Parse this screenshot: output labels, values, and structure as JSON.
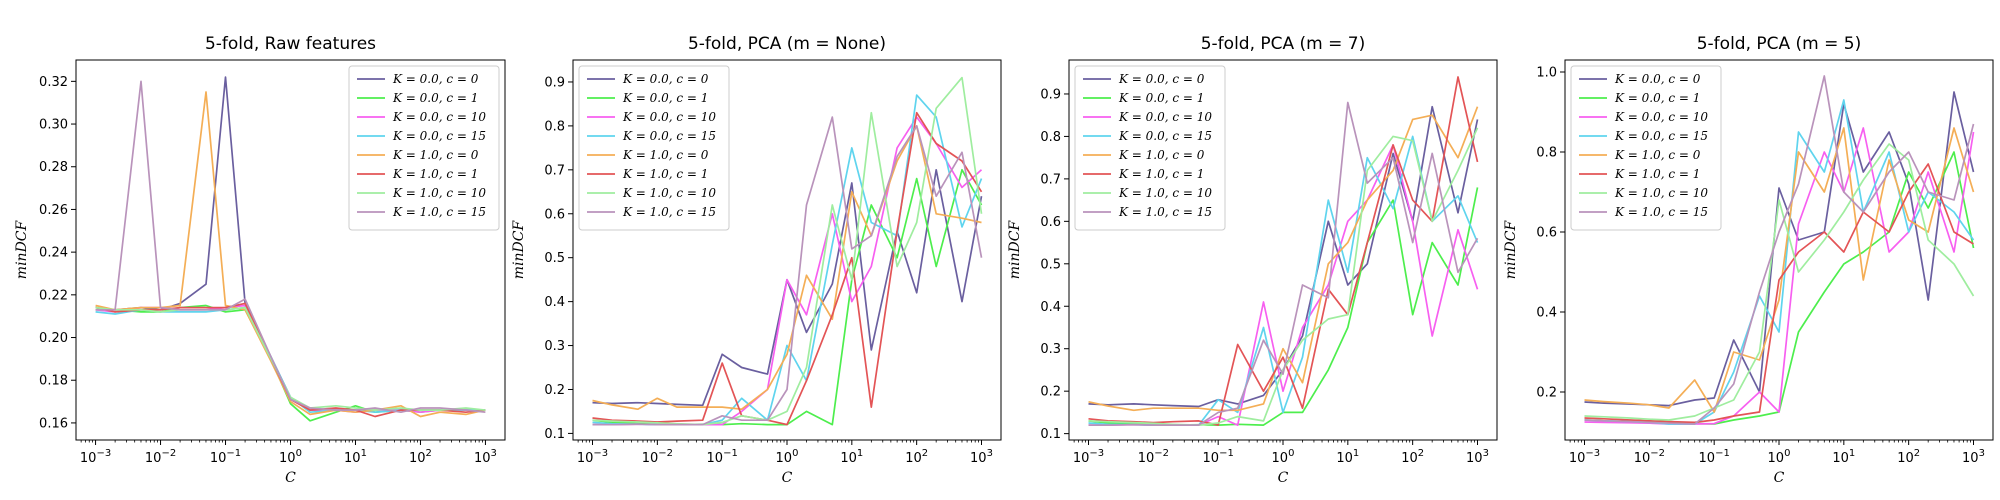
{
  "chart_data": [
    {
      "type": "line",
      "title": "5-fold, Raw features",
      "xlabel": "C",
      "ylabel": "minDCF",
      "xscale": "log",
      "x": [
        0.001,
        0.002,
        0.005,
        0.01,
        0.02,
        0.05,
        0.1,
        0.2,
        0.5,
        1,
        2,
        5,
        10,
        20,
        50,
        100,
        200,
        500,
        1000
      ],
      "xlim": [
        0.0005,
        2000
      ],
      "ylim": [
        0.152,
        0.33
      ],
      "yticks": [
        0.16,
        0.18,
        0.2,
        0.22,
        0.24,
        0.26,
        0.28,
        0.3,
        0.32
      ],
      "ytick_labels": [
        "0.16",
        "0.18",
        "0.20",
        "0.22",
        "0.24",
        "0.26",
        "0.28",
        "0.30",
        "0.32"
      ],
      "xtick_labels": [
        "10^-3",
        "10^-2",
        "10^-1",
        "10^0",
        "10^1",
        "10^2",
        "10^3"
      ],
      "legend_position": "top-right",
      "series": [
        {
          "name": "K = 0.0, c = 0",
          "color": "#6a5f9f",
          "values": [
            0.214,
            0.213,
            0.214,
            0.213,
            0.216,
            0.225,
            0.322,
            0.216,
            0.191,
            0.172,
            0.166,
            0.166,
            0.166,
            0.166,
            0.166,
            0.166,
            0.166,
            0.166,
            0.166
          ]
        },
        {
          "name": "K = 0.0, c = 1",
          "color": "#4dee4d",
          "values": [
            0.213,
            0.213,
            0.212,
            0.212,
            0.214,
            0.215,
            0.212,
            0.213,
            0.19,
            0.169,
            0.161,
            0.165,
            0.168,
            0.165,
            0.166,
            0.165,
            0.166,
            0.166,
            0.166
          ]
        },
        {
          "name": "K = 0.0, c = 10",
          "color": "#f75ff0",
          "values": [
            0.213,
            0.212,
            0.214,
            0.214,
            0.213,
            0.213,
            0.214,
            0.215,
            0.19,
            0.171,
            0.166,
            0.166,
            0.165,
            0.166,
            0.166,
            0.165,
            0.166,
            0.166,
            0.166
          ]
        },
        {
          "name": "K = 0.0, c = 15",
          "color": "#5fd4ee",
          "values": [
            0.212,
            0.211,
            0.213,
            0.212,
            0.212,
            0.212,
            0.213,
            0.214,
            0.191,
            0.172,
            0.165,
            0.166,
            0.166,
            0.165,
            0.166,
            0.166,
            0.166,
            0.166,
            0.166
          ]
        },
        {
          "name": "K = 1.0, c = 0",
          "color": "#f4ae56",
          "values": [
            0.215,
            0.213,
            0.214,
            0.214,
            0.215,
            0.315,
            0.215,
            0.213,
            0.189,
            0.17,
            0.164,
            0.166,
            0.165,
            0.166,
            0.168,
            0.163,
            0.165,
            0.164,
            0.166
          ]
        },
        {
          "name": "K = 1.0, c = 1",
          "color": "#e35456",
          "values": [
            0.214,
            0.212,
            0.213,
            0.213,
            0.214,
            0.214,
            0.214,
            0.216,
            0.19,
            0.171,
            0.166,
            0.167,
            0.166,
            0.163,
            0.166,
            0.166,
            0.166,
            0.165,
            0.166
          ]
        },
        {
          "name": "K = 1.0, c = 10",
          "color": "#9fed9f",
          "values": [
            0.214,
            0.213,
            0.213,
            0.212,
            0.213,
            0.213,
            0.213,
            0.214,
            0.19,
            0.172,
            0.167,
            0.168,
            0.167,
            0.166,
            0.167,
            0.166,
            0.166,
            0.167,
            0.166
          ]
        },
        {
          "name": "K = 1.0, c = 15",
          "color": "#b993bb",
          "values": [
            0.213,
            0.213,
            0.32,
            0.214,
            0.213,
            0.213,
            0.213,
            0.218,
            0.191,
            0.171,
            0.167,
            0.166,
            0.166,
            0.167,
            0.165,
            0.167,
            0.167,
            0.166,
            0.165
          ]
        }
      ]
    },
    {
      "type": "line",
      "title": "5-fold, PCA (m = None)",
      "xlabel": "C",
      "ylabel": "minDCF",
      "xscale": "log",
      "x": [
        0.001,
        0.002,
        0.005,
        0.01,
        0.02,
        0.05,
        0.1,
        0.2,
        0.5,
        1,
        2,
        5,
        10,
        20,
        50,
        100,
        200,
        500,
        1000
      ],
      "xlim": [
        0.0005,
        2000
      ],
      "ylim": [
        0.085,
        0.95
      ],
      "yticks": [
        0.1,
        0.2,
        0.3,
        0.4,
        0.5,
        0.6,
        0.7,
        0.8,
        0.9
      ],
      "ytick_labels": [
        "0.1",
        "0.2",
        "0.3",
        "0.4",
        "0.5",
        "0.6",
        "0.7",
        "0.8",
        "0.9"
      ],
      "xtick_labels": [
        "10^-3",
        "10^-2",
        "10^-1",
        "10^0",
        "10^1",
        "10^2",
        "10^3"
      ],
      "legend_position": "top-left",
      "series": [
        {
          "name": "K = 0.0, c = 0",
          "color": "#6a5f9f",
          "values": [
            0.17,
            0.168,
            0.17,
            0.168,
            0.166,
            0.164,
            0.28,
            0.25,
            0.235,
            0.45,
            0.33,
            0.44,
            0.67,
            0.29,
            0.56,
            0.42,
            0.7,
            0.4,
            0.64
          ]
        },
        {
          "name": "K = 0.0, c = 1",
          "color": "#4dee4d",
          "values": [
            0.13,
            0.125,
            0.123,
            0.122,
            0.12,
            0.121,
            0.12,
            0.122,
            0.12,
            0.12,
            0.15,
            0.12,
            0.45,
            0.62,
            0.5,
            0.68,
            0.48,
            0.7,
            0.62
          ]
        },
        {
          "name": "K = 0.0, c = 10",
          "color": "#f75ff0",
          "values": [
            0.12,
            0.12,
            0.121,
            0.12,
            0.12,
            0.12,
            0.12,
            0.15,
            0.2,
            0.45,
            0.37,
            0.6,
            0.4,
            0.48,
            0.75,
            0.82,
            0.76,
            0.66,
            0.7
          ]
        },
        {
          "name": "K = 0.0, c = 15",
          "color": "#5fd4ee",
          "values": [
            0.125,
            0.122,
            0.121,
            0.12,
            0.121,
            0.12,
            0.13,
            0.18,
            0.13,
            0.3,
            0.22,
            0.53,
            0.75,
            0.58,
            0.55,
            0.87,
            0.82,
            0.57,
            0.68
          ]
        },
        {
          "name": "K = 1.0, c = 0",
          "color": "#f4ae56",
          "values": [
            0.175,
            0.165,
            0.155,
            0.18,
            0.16,
            0.16,
            0.16,
            0.155,
            0.2,
            0.28,
            0.46,
            0.36,
            0.65,
            0.55,
            0.72,
            0.8,
            0.6,
            0.59,
            0.58
          ]
        },
        {
          "name": "K = 1.0, c = 1",
          "color": "#e35456",
          "values": [
            0.135,
            0.13,
            0.128,
            0.126,
            0.128,
            0.13,
            0.26,
            0.14,
            0.13,
            0.12,
            0.22,
            0.37,
            0.5,
            0.16,
            0.56,
            0.83,
            0.76,
            0.72,
            0.65
          ]
        },
        {
          "name": "K = 1.0, c = 10",
          "color": "#9fed9f",
          "values": [
            0.13,
            0.128,
            0.126,
            0.124,
            0.122,
            0.12,
            0.125,
            0.14,
            0.13,
            0.15,
            0.25,
            0.62,
            0.45,
            0.83,
            0.48,
            0.58,
            0.84,
            0.91,
            0.6
          ]
        },
        {
          "name": "K = 1.0, c = 15",
          "color": "#b993bb",
          "values": [
            0.12,
            0.12,
            0.121,
            0.12,
            0.12,
            0.12,
            0.14,
            0.13,
            0.13,
            0.2,
            0.62,
            0.82,
            0.52,
            0.55,
            0.73,
            0.8,
            0.64,
            0.74,
            0.5
          ]
        }
      ]
    },
    {
      "type": "line",
      "title": "5-fold, PCA (m = 7)",
      "xlabel": "C",
      "ylabel": "minDCF",
      "xscale": "log",
      "x": [
        0.001,
        0.002,
        0.005,
        0.01,
        0.02,
        0.05,
        0.1,
        0.2,
        0.5,
        1,
        2,
        5,
        10,
        20,
        50,
        100,
        200,
        500,
        1000
      ],
      "xlim": [
        0.0005,
        2000
      ],
      "ylim": [
        0.085,
        0.98
      ],
      "yticks": [
        0.1,
        0.2,
        0.3,
        0.4,
        0.5,
        0.6,
        0.7,
        0.8,
        0.9
      ],
      "ytick_labels": [
        "0.1",
        "0.2",
        "0.3",
        "0.4",
        "0.5",
        "0.6",
        "0.7",
        "0.8",
        "0.9"
      ],
      "xtick_labels": [
        "10^-3",
        "10^-2",
        "10^-1",
        "10^0",
        "10^1",
        "10^2",
        "10^3"
      ],
      "legend_position": "top-left",
      "series": [
        {
          "name": "K = 0.0, c = 0",
          "color": "#6a5f9f",
          "values": [
            0.17,
            0.168,
            0.17,
            0.168,
            0.166,
            0.164,
            0.18,
            0.17,
            0.19,
            0.25,
            0.33,
            0.6,
            0.45,
            0.5,
            0.76,
            0.6,
            0.87,
            0.62,
            0.84
          ]
        },
        {
          "name": "K = 0.0, c = 1",
          "color": "#4dee4d",
          "values": [
            0.13,
            0.125,
            0.123,
            0.122,
            0.12,
            0.121,
            0.12,
            0.122,
            0.12,
            0.15,
            0.15,
            0.25,
            0.35,
            0.55,
            0.65,
            0.38,
            0.55,
            0.45,
            0.68
          ]
        },
        {
          "name": "K = 0.0, c = 10",
          "color": "#f75ff0",
          "values": [
            0.12,
            0.12,
            0.121,
            0.12,
            0.12,
            0.12,
            0.14,
            0.12,
            0.41,
            0.2,
            0.35,
            0.45,
            0.6,
            0.65,
            0.78,
            0.6,
            0.33,
            0.58,
            0.44
          ]
        },
        {
          "name": "K = 0.0, c = 15",
          "color": "#5fd4ee",
          "values": [
            0.125,
            0.122,
            0.121,
            0.12,
            0.121,
            0.12,
            0.18,
            0.15,
            0.35,
            0.15,
            0.28,
            0.65,
            0.48,
            0.75,
            0.63,
            0.8,
            0.6,
            0.66,
            0.55
          ]
        },
        {
          "name": "K = 1.0, c = 0",
          "color": "#f4ae56",
          "values": [
            0.175,
            0.165,
            0.155,
            0.16,
            0.16,
            0.16,
            0.155,
            0.155,
            0.17,
            0.3,
            0.22,
            0.5,
            0.55,
            0.65,
            0.72,
            0.84,
            0.85,
            0.75,
            0.87
          ]
        },
        {
          "name": "K = 1.0, c = 1",
          "color": "#e35456",
          "values": [
            0.135,
            0.13,
            0.128,
            0.126,
            0.128,
            0.13,
            0.12,
            0.31,
            0.2,
            0.28,
            0.16,
            0.44,
            0.38,
            0.55,
            0.78,
            0.65,
            0.6,
            0.94,
            0.74
          ]
        },
        {
          "name": "K = 1.0, c = 10",
          "color": "#9fed9f",
          "values": [
            0.13,
            0.128,
            0.126,
            0.124,
            0.122,
            0.12,
            0.125,
            0.14,
            0.13,
            0.25,
            0.32,
            0.37,
            0.38,
            0.72,
            0.8,
            0.79,
            0.6,
            0.72,
            0.82
          ]
        },
        {
          "name": "K = 1.0, c = 15",
          "color": "#b993bb",
          "values": [
            0.12,
            0.12,
            0.121,
            0.12,
            0.12,
            0.12,
            0.15,
            0.16,
            0.32,
            0.24,
            0.45,
            0.42,
            0.88,
            0.69,
            0.75,
            0.55,
            0.76,
            0.48,
            0.56
          ]
        }
      ]
    },
    {
      "type": "line",
      "title": "5-fold, PCA (m = 5)",
      "xlabel": "C",
      "ylabel": "minDCF",
      "xscale": "log",
      "x": [
        0.001,
        0.002,
        0.005,
        0.01,
        0.02,
        0.05,
        0.1,
        0.2,
        0.5,
        1,
        2,
        5,
        10,
        20,
        50,
        100,
        200,
        500,
        1000
      ],
      "xlim": [
        0.0005,
        2000
      ],
      "ylim": [
        0.08,
        1.03
      ],
      "yticks": [
        0.2,
        0.4,
        0.6,
        0.8,
        1.0
      ],
      "ytick_labels": [
        "0.2",
        "0.4",
        "0.6",
        "0.8",
        "1.0"
      ],
      "xtick_labels": [
        "10^-3",
        "10^-2",
        "10^-1",
        "10^0",
        "10^1",
        "10^2",
        "10^3"
      ],
      "legend_position": "top-left",
      "series": [
        {
          "name": "K = 0.0, c = 0",
          "color": "#6a5f9f",
          "values": [
            0.175,
            0.172,
            0.17,
            0.168,
            0.166,
            0.18,
            0.185,
            0.33,
            0.2,
            0.71,
            0.58,
            0.6,
            0.92,
            0.75,
            0.85,
            0.72,
            0.43,
            0.95,
            0.75
          ]
        },
        {
          "name": "K = 0.0, c = 1",
          "color": "#4dee4d",
          "values": [
            0.13,
            0.128,
            0.126,
            0.124,
            0.122,
            0.121,
            0.12,
            0.13,
            0.14,
            0.15,
            0.35,
            0.45,
            0.52,
            0.55,
            0.6,
            0.75,
            0.66,
            0.8,
            0.56
          ]
        },
        {
          "name": "K = 0.0, c = 10",
          "color": "#f75ff0",
          "values": [
            0.125,
            0.124,
            0.123,
            0.122,
            0.12,
            0.12,
            0.121,
            0.14,
            0.2,
            0.15,
            0.62,
            0.8,
            0.7,
            0.86,
            0.55,
            0.6,
            0.75,
            0.55,
            0.85
          ]
        },
        {
          "name": "K = 0.0, c = 15",
          "color": "#5fd4ee",
          "values": [
            0.13,
            0.128,
            0.126,
            0.124,
            0.12,
            0.12,
            0.15,
            0.25,
            0.44,
            0.35,
            0.85,
            0.75,
            0.93,
            0.65,
            0.8,
            0.6,
            0.7,
            0.65,
            0.58
          ]
        },
        {
          "name": "K = 1.0, c = 0",
          "color": "#f4ae56",
          "values": [
            0.18,
            0.176,
            0.172,
            0.168,
            0.16,
            0.23,
            0.15,
            0.3,
            0.28,
            0.43,
            0.8,
            0.7,
            0.86,
            0.48,
            0.78,
            0.63,
            0.6,
            0.86,
            0.7
          ]
        },
        {
          "name": "K = 1.0, c = 1",
          "color": "#e35456",
          "values": [
            0.135,
            0.133,
            0.13,
            0.128,
            0.126,
            0.124,
            0.13,
            0.14,
            0.15,
            0.48,
            0.55,
            0.6,
            0.55,
            0.65,
            0.6,
            0.7,
            0.77,
            0.6,
            0.57
          ]
        },
        {
          "name": "K = 1.0, c = 10",
          "color": "#9fed9f",
          "values": [
            0.14,
            0.138,
            0.135,
            0.132,
            0.13,
            0.14,
            0.16,
            0.18,
            0.3,
            0.68,
            0.5,
            0.58,
            0.65,
            0.73,
            0.82,
            0.78,
            0.58,
            0.52,
            0.44
          ]
        },
        {
          "name": "K = 1.0, c = 15",
          "color": "#b993bb",
          "values": [
            0.13,
            0.128,
            0.126,
            0.124,
            0.122,
            0.12,
            0.16,
            0.22,
            0.45,
            0.6,
            0.72,
            0.99,
            0.7,
            0.65,
            0.75,
            0.8,
            0.7,
            0.68,
            0.87
          ]
        }
      ]
    }
  ]
}
